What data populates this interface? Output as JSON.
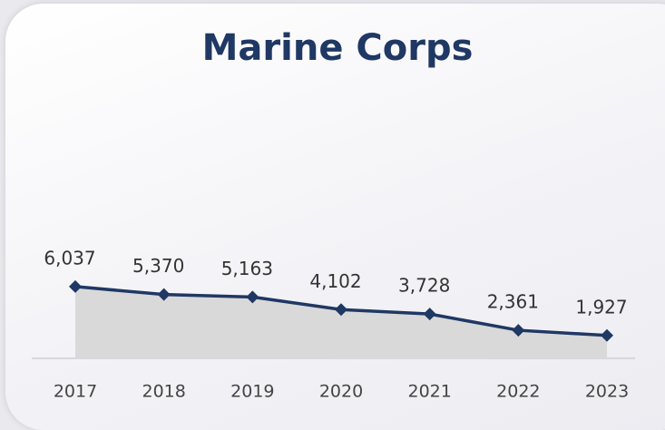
{
  "chart_data": {
    "type": "line",
    "title": "Marine Corps",
    "x": [
      2017,
      2018,
      2019,
      2020,
      2021,
      2022,
      2023
    ],
    "values": [
      6037,
      5370,
      5163,
      4102,
      3728,
      2361,
      1927
    ],
    "value_labels": [
      "6,037",
      "5,370",
      "5,163",
      "4,102",
      "3,728",
      "2,361",
      "1,927"
    ],
    "color": "#1f3864",
    "area_color": "#d9d9d9"
  }
}
